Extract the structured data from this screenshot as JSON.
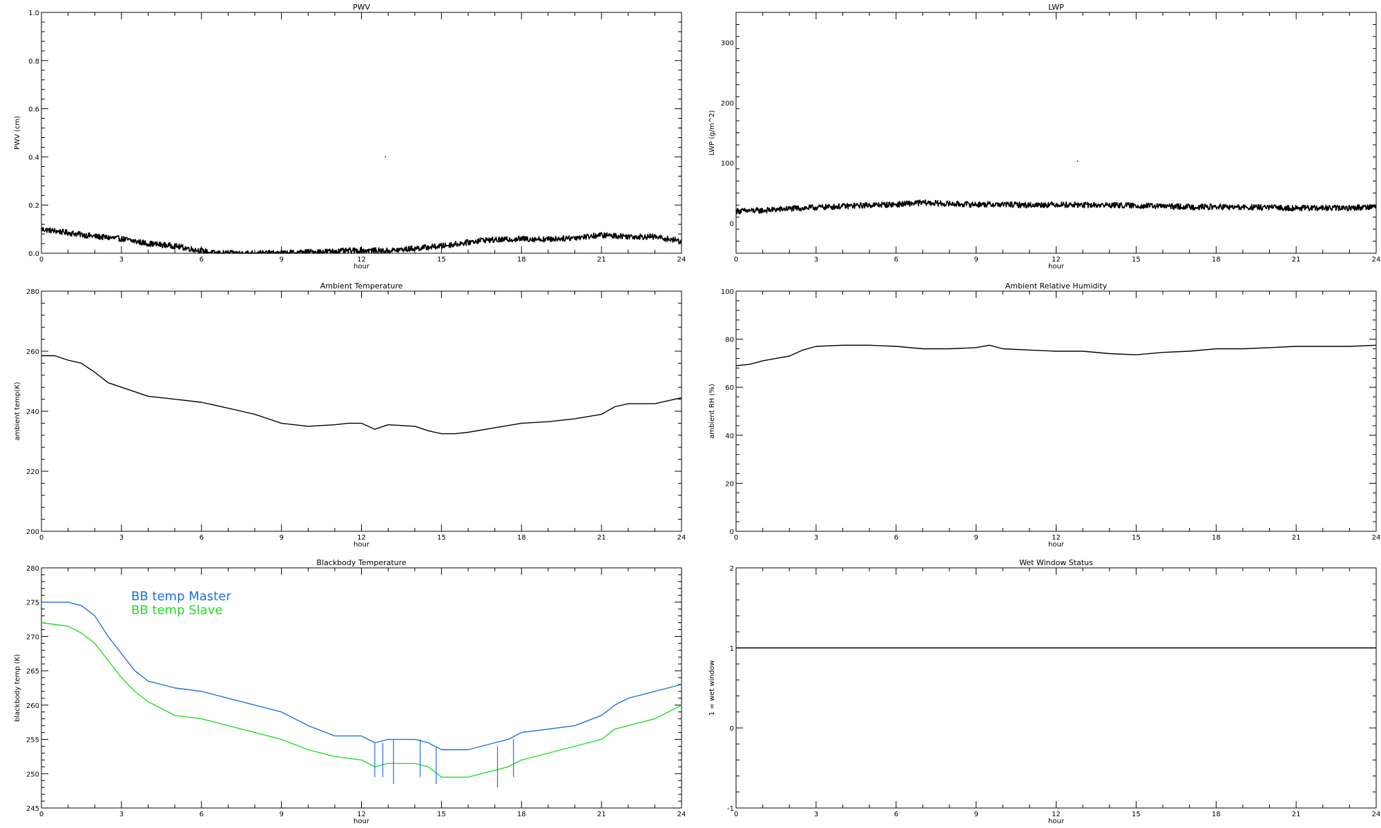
{
  "chart_data": [
    {
      "type": "line",
      "title": "PWV",
      "xlabel": "hour",
      "ylabel": "PWV (cm)",
      "xlim": [
        0,
        24
      ],
      "ylim": [
        0.0,
        1.0
      ],
      "xticks": [
        "0",
        "3",
        "6",
        "9",
        "12",
        "15",
        "18",
        "21",
        "24"
      ],
      "yticks": [
        "0.0",
        "0.2",
        "0.4",
        "0.6",
        "0.8",
        "1.0"
      ],
      "grid": false,
      "series": [
        {
          "color": "#000000",
          "noisy": true,
          "x": [
            0,
            1,
            2,
            3,
            4,
            5,
            6,
            6.5,
            7,
            8,
            9,
            10,
            11,
            12,
            13,
            14,
            15,
            16,
            16.5,
            17,
            18,
            19,
            20,
            21,
            22,
            23,
            24
          ],
          "y": [
            0.1,
            0.085,
            0.07,
            0.06,
            0.04,
            0.03,
            0.01,
            0.0,
            0.0,
            0.0,
            0.0,
            0.005,
            0.008,
            0.012,
            0.01,
            0.02,
            0.03,
            0.045,
            0.055,
            0.055,
            0.06,
            0.058,
            0.065,
            0.075,
            0.07,
            0.068,
            0.05
          ]
        }
      ],
      "points": [
        {
          "x": 12.9,
          "y": 0.4
        }
      ]
    },
    {
      "type": "line",
      "title": "LWP",
      "xlabel": "hour",
      "ylabel": "LWP (g/m^2)",
      "xlim": [
        0,
        24
      ],
      "ylim": [
        -50,
        350
      ],
      "xticks": [
        "0",
        "3",
        "6",
        "9",
        "12",
        "15",
        "18",
        "21",
        "24"
      ],
      "yticks": [
        "0",
        "100",
        "200",
        "300"
      ],
      "ytick_values": [
        0,
        100,
        200,
        300
      ],
      "grid": false,
      "series": [
        {
          "color": "#000000",
          "noisy": true,
          "x": [
            0,
            1,
            2,
            3,
            4,
            5,
            6,
            7,
            8,
            9,
            10,
            11,
            12,
            13,
            14,
            15,
            16,
            17,
            18,
            19,
            20,
            21,
            22,
            23,
            24
          ],
          "y": [
            20,
            21,
            24,
            26,
            28,
            30,
            31,
            34,
            32,
            31,
            31,
            30,
            31,
            30,
            30,
            29,
            28,
            27,
            27,
            26,
            26,
            25,
            25,
            25,
            28
          ]
        }
      ],
      "points": [
        {
          "x": 12.8,
          "y": 103
        }
      ]
    },
    {
      "type": "line",
      "title": "Ambient Temperature",
      "xlabel": "hour",
      "ylabel": "ambient temp(K)",
      "xlim": [
        0,
        24
      ],
      "ylim": [
        200,
        280
      ],
      "xticks": [
        "0",
        "3",
        "6",
        "9",
        "12",
        "15",
        "18",
        "21",
        "24"
      ],
      "yticks": [
        "200",
        "220",
        "240",
        "260",
        "280"
      ],
      "ytick_values": [
        200,
        220,
        240,
        260,
        280
      ],
      "grid": false,
      "series": [
        {
          "color": "#000000",
          "x": [
            0,
            0.5,
            1,
            1.5,
            2,
            2.5,
            3,
            4,
            5,
            6,
            6.5,
            7,
            7.5,
            8,
            9,
            10,
            11,
            11.5,
            12,
            12.5,
            13,
            14,
            14.5,
            15,
            15.5,
            16,
            17,
            18,
            19,
            20,
            21,
            21.5,
            22,
            23,
            24
          ],
          "y": [
            258.5,
            258.5,
            257,
            256,
            253,
            249.5,
            248,
            245,
            244,
            243,
            242,
            241,
            240,
            239,
            236,
            235,
            235.5,
            236,
            236,
            234,
            235.5,
            235,
            233.5,
            232.5,
            232.5,
            233,
            234.5,
            236,
            236.5,
            237.5,
            239,
            241.5,
            242.5,
            242.5,
            244.5
          ]
        }
      ]
    },
    {
      "type": "line",
      "title": "Ambient Relative Humidity",
      "xlabel": "hour",
      "ylabel": "ambient RH (%)",
      "xlim": [
        0,
        24
      ],
      "ylim": [
        0,
        100
      ],
      "xticks": [
        "0",
        "3",
        "6",
        "9",
        "12",
        "15",
        "18",
        "21",
        "24"
      ],
      "yticks": [
        "0",
        "20",
        "40",
        "60",
        "80",
        "100"
      ],
      "ytick_values": [
        0,
        20,
        40,
        60,
        80,
        100
      ],
      "grid": false,
      "series": [
        {
          "color": "#000000",
          "x": [
            0,
            0.5,
            1,
            1.5,
            2,
            2.5,
            3,
            4,
            5,
            6,
            7,
            8,
            9,
            9.5,
            10,
            11,
            12,
            13,
            14,
            15,
            16,
            17,
            18,
            19,
            20,
            21,
            22,
            23,
            24
          ],
          "y": [
            69,
            69.5,
            71,
            72,
            73,
            75.5,
            77,
            77.5,
            77.5,
            77,
            76,
            76,
            76.5,
            77.5,
            76,
            75.5,
            75,
            75,
            74,
            73.5,
            74.5,
            75,
            76,
            76,
            76.5,
            77,
            77,
            77,
            77.5
          ]
        }
      ]
    },
    {
      "type": "line",
      "title": "Blackbody Temperature",
      "xlabel": "hour",
      "ylabel": "blackbody temp (K)",
      "xlim": [
        0,
        24
      ],
      "ylim": [
        245,
        280
      ],
      "xticks": [
        "0",
        "3",
        "6",
        "9",
        "12",
        "15",
        "18",
        "21",
        "24"
      ],
      "yticks": [
        "245",
        "250",
        "255",
        "260",
        "265",
        "270",
        "275",
        "280"
      ],
      "ytick_values": [
        245,
        250,
        255,
        260,
        265,
        270,
        275,
        280
      ],
      "grid": false,
      "legend": "top-left",
      "series": [
        {
          "name": "BB temp Master",
          "color": "#1f6fe0",
          "x": [
            0,
            1,
            1.5,
            2,
            2.5,
            3,
            3.5,
            4,
            5,
            6,
            7,
            8,
            8.5,
            9,
            10,
            11,
            12,
            12.5,
            13,
            14,
            14.5,
            15,
            16,
            17,
            17.5,
            18,
            19,
            20,
            21,
            21.5,
            22,
            23,
            24
          ],
          "y": [
            275,
            275,
            274.5,
            273,
            270,
            267.5,
            265,
            263.5,
            262.5,
            262,
            261,
            260,
            259.5,
            259,
            257,
            255.5,
            255.5,
            254.5,
            255,
            255,
            254.5,
            253.5,
            253.5,
            254.5,
            255,
            256,
            256.5,
            257,
            258.5,
            260,
            261,
            262,
            263
          ]
        },
        {
          "name": "BB temp Slave",
          "color": "#22dd22",
          "x": [
            0,
            1,
            1.5,
            2,
            2.5,
            3,
            3.5,
            4,
            5,
            6,
            7,
            8,
            9,
            10,
            11,
            12,
            12.5,
            13,
            14,
            14.5,
            15,
            16,
            17,
            17.5,
            18,
            19,
            20,
            21,
            21.5,
            22,
            23,
            24
          ],
          "y": [
            272,
            271.5,
            270.5,
            269,
            266.5,
            264,
            262,
            260.5,
            258.5,
            258,
            257,
            256,
            255,
            253.5,
            252.5,
            252,
            251,
            251.5,
            251.5,
            251,
            249.5,
            249.5,
            250.5,
            251,
            252,
            253,
            254,
            255,
            256.5,
            257,
            258,
            260
          ]
        }
      ],
      "spikes": {
        "color": "#1f6fe0",
        "x": [
          12.5,
          12.8,
          13.2,
          14.2,
          14.8,
          17.1,
          17.7
        ],
        "y_top": [
          254.5,
          254.5,
          255,
          255,
          254,
          254,
          255
        ],
        "y_bottom": [
          249.5,
          249.5,
          248.5,
          249.5,
          248.5,
          248,
          249.5
        ]
      }
    },
    {
      "type": "line",
      "title": "Wet Window Status",
      "xlabel": "hour",
      "ylabel": "1 = wet window",
      "xlim": [
        0,
        24
      ],
      "ylim": [
        -1,
        2
      ],
      "xticks": [
        "0",
        "3",
        "6",
        "9",
        "12",
        "15",
        "18",
        "21",
        "24"
      ],
      "yticks": [
        "-1",
        "0",
        "1",
        "2"
      ],
      "ytick_values": [
        -1,
        0,
        1,
        2
      ],
      "grid": false,
      "series": [
        {
          "color": "#000000",
          "x": [
            0,
            24
          ],
          "y": [
            1,
            1
          ]
        }
      ]
    }
  ]
}
